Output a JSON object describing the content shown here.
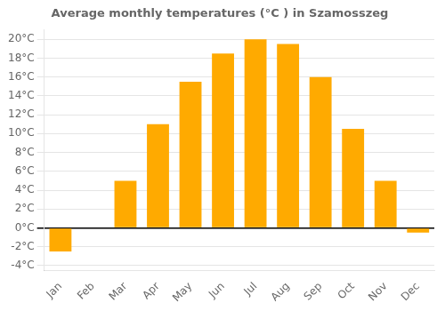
{
  "chart_data": {
    "type": "bar",
    "title": "Average monthly temperatures (°C ) in Szamosszeg",
    "categories": [
      "Jan",
      "Feb",
      "Mar",
      "Apr",
      "May",
      "Jun",
      "Jul",
      "Aug",
      "Sep",
      "Oct",
      "Nov",
      "Dec"
    ],
    "values": [
      -2.5,
      0,
      5.0,
      11.0,
      15.5,
      18.5,
      20.0,
      19.5,
      16.0,
      10.5,
      5.0,
      -0.5
    ],
    "color": "#FFAA00",
    "ylim": [
      -4.5,
      21
    ],
    "yticks": [
      {
        "value": -4,
        "label": "-4°C"
      },
      {
        "value": -2,
        "label": "-2°C"
      },
      {
        "value": 0,
        "label": "0°C"
      },
      {
        "value": 2,
        "label": "2°C"
      },
      {
        "value": 4,
        "label": "4°C"
      },
      {
        "value": 6,
        "label": "6°C"
      },
      {
        "value": 8,
        "label": "8°C"
      },
      {
        "value": 10,
        "label": "10°C"
      },
      {
        "value": 12,
        "label": "12°C"
      },
      {
        "value": 14,
        "label": "14°C"
      },
      {
        "value": 16,
        "label": "16°C"
      },
      {
        "value": 18,
        "label": "18°C"
      },
      {
        "value": 20,
        "label": "20°C"
      }
    ],
    "grid": true
  }
}
